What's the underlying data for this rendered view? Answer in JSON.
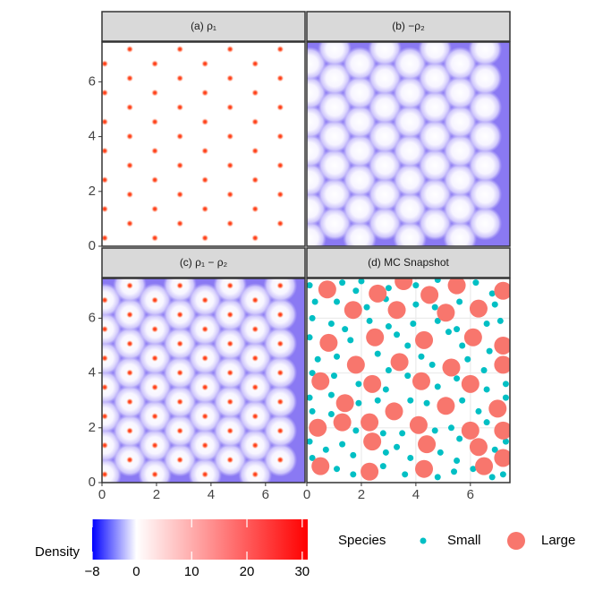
{
  "chart_data": {
    "type": "facet",
    "xlim": [
      0,
      7.45
    ],
    "ylim": [
      0,
      7.45
    ],
    "xticks": [
      0,
      2,
      4,
      6
    ],
    "yticks": [
      0,
      2,
      4,
      6
    ],
    "panels": [
      {
        "title": "(a) ρ₁",
        "type": "heatmap",
        "rho1": 1,
        "rho2": 0
      },
      {
        "title": "(b) −ρ₂",
        "type": "heatmap",
        "rho1": 0,
        "rho2": -1
      },
      {
        "title": "(c) ρ₁ − ρ₂",
        "type": "heatmap",
        "rho1": 1,
        "rho2": -1
      },
      {
        "title": "(d) MC Snapshot",
        "type": "scatter",
        "grid": true
      }
    ],
    "peaks": {
      "x": [
        0.1,
        0.1,
        0.1,
        0.1,
        0.1,
        0.1,
        0.1,
        1.02,
        1.02,
        1.02,
        1.02,
        1.02,
        1.02,
        1.02,
        1.94,
        1.94,
        1.94,
        1.94,
        1.94,
        1.94,
        1.94,
        2.86,
        2.86,
        2.86,
        2.86,
        2.86,
        2.86,
        2.86,
        3.78,
        3.78,
        3.78,
        3.78,
        3.78,
        3.78,
        3.78,
        4.7,
        4.7,
        4.7,
        4.7,
        4.7,
        4.7,
        4.7,
        5.62,
        5.62,
        5.62,
        5.62,
        5.62,
        5.62,
        5.62,
        6.54,
        6.54,
        6.54,
        6.54,
        6.54,
        6.54,
        6.54
      ],
      "y": [
        0.3,
        1.36,
        2.42,
        3.48,
        4.54,
        5.6,
        6.66,
        0.83,
        1.89,
        2.95,
        4.01,
        5.07,
        6.13,
        7.19,
        0.3,
        1.36,
        2.42,
        3.48,
        4.54,
        5.6,
        6.66,
        0.83,
        1.89,
        2.95,
        4.01,
        5.07,
        6.13,
        7.19,
        0.3,
        1.36,
        2.42,
        3.48,
        4.54,
        5.6,
        6.66,
        0.83,
        1.89,
        2.95,
        4.01,
        5.07,
        6.13,
        7.19,
        0.3,
        1.36,
        2.42,
        3.48,
        4.54,
        5.6,
        6.66,
        0.83,
        1.89,
        2.95,
        4.01,
        5.07,
        6.13,
        7.19
      ]
    },
    "legend_title": "Species",
    "series": [
      {
        "name": "Small",
        "color": "#00BFC4",
        "x": [
          0.1,
          1.3,
          1.8,
          2.0,
          3.0,
          4.0,
          4.8,
          6.2,
          6.8,
          0.3,
          1.1,
          2.2,
          2.9,
          4.0,
          4.7,
          5.6,
          6.9,
          0.2,
          0.9,
          1.4,
          2.3,
          3.0,
          3.9,
          4.8,
          5.5,
          6.6,
          7.1,
          0.1,
          1.6,
          3.3,
          3.7,
          5.2,
          5.7,
          6.7,
          0.4,
          1.1,
          2.6,
          3.0,
          4.2,
          4.6,
          5.9,
          6.5,
          0.2,
          1.0,
          1.9,
          2.9,
          3.7,
          4.8,
          5.5,
          6.6,
          7.3,
          0.1,
          0.9,
          1.9,
          2.6,
          3.8,
          4.4,
          5.7,
          6.3,
          7.3,
          0.2,
          0.9,
          1.8,
          2.8,
          3.5,
          4.7,
          5.3,
          5.6,
          6.6,
          0.1,
          0.7,
          1.3,
          1.7,
          2.9,
          3.3,
          3.8,
          4.9,
          5.5,
          6.1,
          6.9,
          7.2,
          0.2,
          1.1,
          1.7,
          2.8,
          3.6,
          4.8,
          5.4,
          6.8,
          7.3
        ],
        "y": [
          7.2,
          7.3,
          7.0,
          7.35,
          7.1,
          7.2,
          7.4,
          7.3,
          6.9,
          6.6,
          6.6,
          6.4,
          6.7,
          6.5,
          6.4,
          6.6,
          6.5,
          6.0,
          5.8,
          5.6,
          5.9,
          5.7,
          5.8,
          5.9,
          5.6,
          5.8,
          5.9,
          5.3,
          5.2,
          5.4,
          5.0,
          5.5,
          5.0,
          4.8,
          4.5,
          4.6,
          4.7,
          4.1,
          4.6,
          4.3,
          4.5,
          4.1,
          4.0,
          3.9,
          3.6,
          3.4,
          3.9,
          3.5,
          3.8,
          3.4,
          3.6,
          3.1,
          3.2,
          2.9,
          3.0,
          3.0,
          2.9,
          3.0,
          2.6,
          3.1,
          2.6,
          2.5,
          1.9,
          1.8,
          1.8,
          1.9,
          2.0,
          1.6,
          2.2,
          1.5,
          1.2,
          1.4,
          1.0,
          1.1,
          1.3,
          0.9,
          1.1,
          0.8,
          0.5,
          1.2,
          0.3,
          0.9,
          0.5,
          0.3,
          0.6,
          0.3,
          0.2,
          0.4,
          0.2,
          1.5
        ]
      },
      {
        "name": "Large",
        "color": "#F8766D",
        "x": [
          0.75,
          2.6,
          3.55,
          4.5,
          5.5,
          7.2,
          1.7,
          3.3,
          5.1,
          6.3,
          0.8,
          2.5,
          4.3,
          6.1,
          7.2,
          1.8,
          3.4,
          5.3,
          7.2,
          0.5,
          2.4,
          4.2,
          6.0,
          1.4,
          3.2,
          5.1,
          7.0,
          0.4,
          1.3,
          2.3,
          4.1,
          6.0,
          7.2,
          2.4,
          4.4,
          6.3,
          0.5,
          2.3,
          4.3,
          6.5,
          7.2
        ],
        "y": [
          7.05,
          6.9,
          7.35,
          6.85,
          7.2,
          7.0,
          6.3,
          6.3,
          6.2,
          6.35,
          5.1,
          5.3,
          5.2,
          5.3,
          5.0,
          4.3,
          4.4,
          4.2,
          4.3,
          3.7,
          3.6,
          3.7,
          3.6,
          2.9,
          2.6,
          2.8,
          2.7,
          2.0,
          2.2,
          2.2,
          2.1,
          1.9,
          1.9,
          1.5,
          1.4,
          1.3,
          0.6,
          0.4,
          0.5,
          0.6,
          0.9
        ]
      }
    ],
    "colorbar": {
      "title": "Density",
      "lim": [
        -8,
        31
      ],
      "ticks": [
        {
          "value": -8,
          "label": "−8"
        },
        0,
        10,
        20,
        30
      ]
    }
  }
}
